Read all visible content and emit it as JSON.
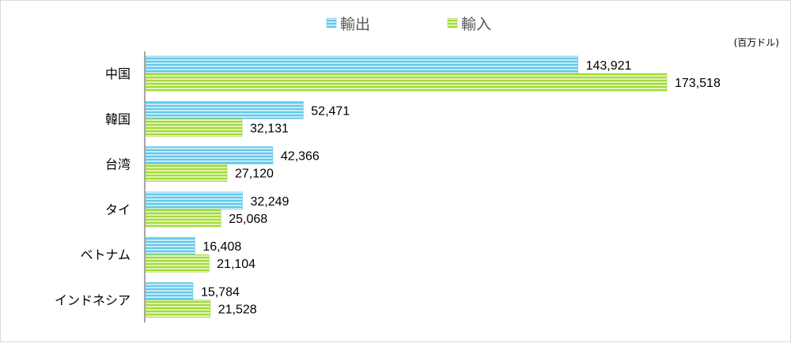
{
  "chart_data": {
    "type": "bar",
    "orientation": "horizontal",
    "unit_label": "(百万ドル)",
    "categories": [
      "中国",
      "韓国",
      "台湾",
      "タイ",
      "ベトナム",
      "インドネシア"
    ],
    "series": [
      {
        "name": "輸出",
        "values": [
          143921,
          52471,
          42366,
          32249,
          16408,
          15784
        ],
        "color": "#7fd3ee",
        "value_labels": [
          "143,921",
          "52,471",
          "42,366",
          "32,249",
          "16,408",
          "15,784"
        ]
      },
      {
        "name": "輸入",
        "values": [
          173518,
          32131,
          27120,
          25068,
          21104,
          21528
        ],
        "color": "#b5e35b",
        "value_labels": [
          "173,518",
          "32,131",
          "27,120",
          "25,068",
          "21,104",
          "21,528"
        ]
      }
    ],
    "xlim": [
      0,
      173518
    ],
    "legend_position": "top",
    "grid": false
  }
}
